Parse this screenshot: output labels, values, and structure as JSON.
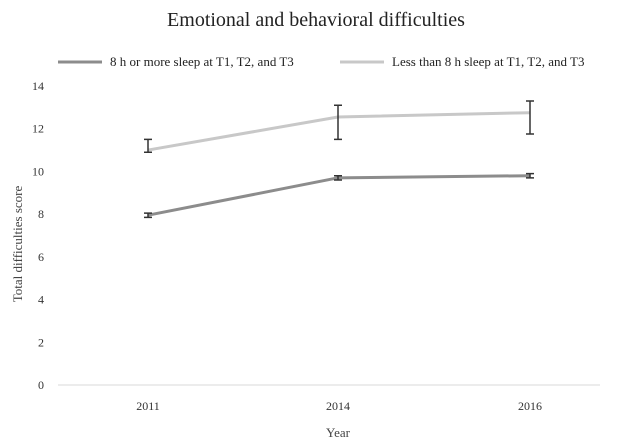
{
  "chart_data": {
    "type": "line",
    "title": "Emotional and behavioral difficulties",
    "xlabel": "Year",
    "ylabel": "Total difficulties score",
    "categories": [
      "2011",
      "2014",
      "2016"
    ],
    "ylim": [
      0,
      14
    ],
    "yticks": [
      0,
      2,
      4,
      6,
      8,
      10,
      12,
      14
    ],
    "grid": false,
    "legend_position": "top",
    "series": [
      {
        "name": "8 h or more sleep at T1, T2, and T3",
        "color": "#8c8c8c",
        "values": [
          7.95,
          9.7,
          9.8
        ],
        "error_low": [
          7.85,
          9.6,
          9.7
        ],
        "error_high": [
          8.05,
          9.8,
          9.9
        ]
      },
      {
        "name": "Less than 8 h sleep at T1, T2, and T3",
        "color": "#c8c8c8",
        "values": [
          11.0,
          12.55,
          12.75
        ],
        "error_low": [
          10.9,
          11.5,
          11.75
        ],
        "error_high": [
          11.5,
          13.1,
          13.3
        ]
      }
    ]
  }
}
